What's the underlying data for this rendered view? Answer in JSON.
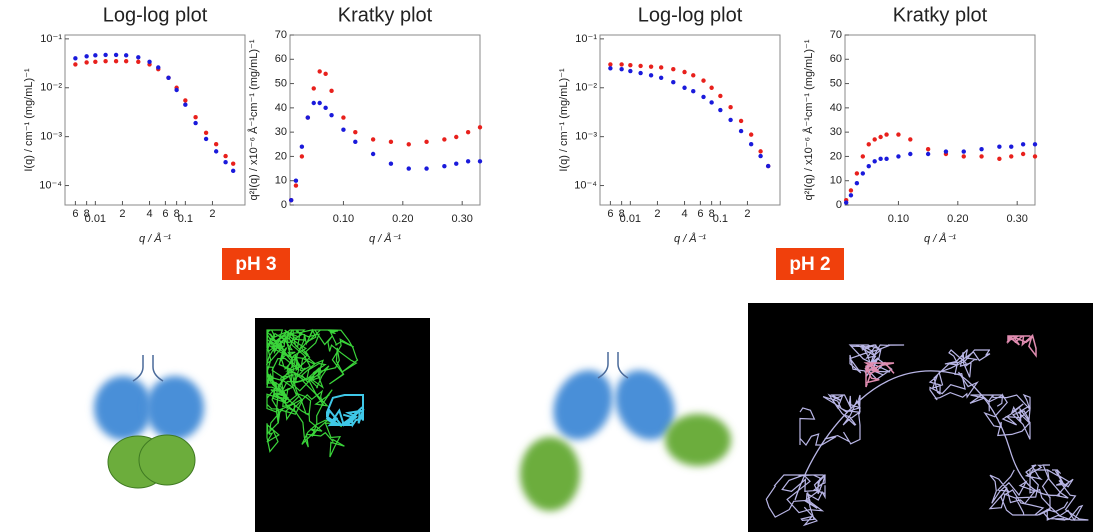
{
  "chart_data": [
    {
      "type": "scatter",
      "title": "Log-log plot",
      "xlabel": "q / Å⁻¹",
      "ylabel": "I(q) / cm⁻¹ (mg/mL)⁻¹",
      "xscale": "log",
      "yscale": "log",
      "xlim": [
        0.0046,
        0.46
      ],
      "ylim": [
        4e-05,
        0.12
      ],
      "xticks": [
        {
          "value": 0.006,
          "label": "6"
        },
        {
          "value": 0.008,
          "label": "8"
        },
        0.01,
        {
          "value": 0.02,
          "label": "2"
        },
        {
          "value": 0.04,
          "label": "4"
        },
        {
          "value": 0.06,
          "label": "6"
        },
        {
          "value": 0.08,
          "label": "8"
        },
        0.1,
        {
          "value": 0.2,
          "label": "2"
        }
      ],
      "yticks": [
        {
          "value": 0.0001,
          "label": "10⁻⁴"
        },
        {
          "value": 0.001,
          "label": "10⁻³"
        },
        {
          "value": 0.01,
          "label": "10⁻²"
        },
        {
          "value": 0.1,
          "label": "10⁻¹"
        }
      ],
      "x": [
        0.006,
        0.008,
        0.01,
        0.013,
        0.017,
        0.022,
        0.03,
        0.04,
        0.05,
        0.065,
        0.08,
        0.1,
        0.13,
        0.17,
        0.22,
        0.28,
        0.34
      ],
      "series": [
        {
          "color": "#e8201c",
          "values": [
            0.03,
            0.033,
            0.034,
            0.035,
            0.035,
            0.035,
            0.034,
            0.03,
            0.024,
            0.016,
            0.01,
            0.0055,
            0.0025,
            0.0012,
            0.0007,
            0.0004,
            0.00028
          ]
        },
        {
          "color": "#1a1adb",
          "values": [
            0.04,
            0.044,
            0.046,
            0.047,
            0.047,
            0.046,
            0.042,
            0.034,
            0.026,
            0.016,
            0.009,
            0.0045,
            0.0019,
            0.0009,
            0.0005,
            0.0003,
            0.0002
          ]
        }
      ]
    },
    {
      "type": "scatter",
      "title": "Kratky plot",
      "xlabel": "q / Å⁻¹",
      "ylabel": "q²I(q) / x10⁻⁶ Å⁻¹cm⁻¹ (mg/mL)⁻¹",
      "xlim": [
        0.01,
        0.33
      ],
      "ylim": [
        0,
        70
      ],
      "xticks": [
        {
          "value": 0.1,
          "label": "0.10"
        },
        {
          "value": 0.2,
          "label": "0.20"
        },
        {
          "value": 0.3,
          "label": "0.30"
        }
      ],
      "yticks": [
        0,
        10,
        20,
        30,
        40,
        50,
        60,
        70
      ],
      "x": [
        0.012,
        0.02,
        0.03,
        0.04,
        0.05,
        0.06,
        0.07,
        0.08,
        0.1,
        0.12,
        0.15,
        0.18,
        0.21,
        0.24,
        0.27,
        0.29,
        0.31,
        0.33
      ],
      "series": [
        {
          "color": "#e8201c",
          "values": [
            2,
            8,
            20,
            36,
            48,
            55,
            54,
            47,
            36,
            30,
            27,
            26,
            25,
            26,
            27,
            28,
            30,
            32
          ]
        },
        {
          "color": "#1a1adb",
          "values": [
            2,
            10,
            24,
            36,
            42,
            42,
            40,
            37,
            31,
            26,
            21,
            17,
            15,
            15,
            16,
            17,
            18,
            18
          ]
        }
      ]
    },
    {
      "type": "scatter",
      "title": "Log-log plot",
      "xlabel": "q / Å⁻¹",
      "ylabel": "I(q) / cm⁻¹ (mg/mL)⁻¹",
      "xscale": "log",
      "yscale": "log",
      "xlim": [
        0.0046,
        0.46
      ],
      "ylim": [
        4e-05,
        0.12
      ],
      "xticks": [
        {
          "value": 0.006,
          "label": "6"
        },
        {
          "value": 0.008,
          "label": "8"
        },
        0.01,
        {
          "value": 0.02,
          "label": "2"
        },
        {
          "value": 0.04,
          "label": "4"
        },
        {
          "value": 0.06,
          "label": "6"
        },
        {
          "value": 0.08,
          "label": "8"
        },
        0.1,
        {
          "value": 0.2,
          "label": "2"
        }
      ],
      "yticks": [
        {
          "value": 0.0001,
          "label": "10⁻⁴"
        },
        {
          "value": 0.001,
          "label": "10⁻³"
        },
        {
          "value": 0.01,
          "label": "10⁻²"
        },
        {
          "value": 0.1,
          "label": "10⁻¹"
        }
      ],
      "x": [
        0.006,
        0.008,
        0.01,
        0.013,
        0.017,
        0.022,
        0.03,
        0.04,
        0.05,
        0.065,
        0.08,
        0.1,
        0.13,
        0.17,
        0.22,
        0.28,
        0.34
      ],
      "series": [
        {
          "color": "#e8201c",
          "values": [
            0.03,
            0.03,
            0.029,
            0.028,
            0.027,
            0.026,
            0.024,
            0.021,
            0.018,
            0.014,
            0.01,
            0.0068,
            0.004,
            0.0021,
            0.0011,
            0.0005,
            0.00025
          ]
        },
        {
          "color": "#1a1adb",
          "values": [
            0.025,
            0.024,
            0.022,
            0.02,
            0.018,
            0.016,
            0.013,
            0.01,
            0.0085,
            0.0065,
            0.005,
            0.0035,
            0.0022,
            0.0013,
            0.0007,
            0.0004,
            0.00025
          ]
        }
      ]
    },
    {
      "type": "scatter",
      "title": "Kratky plot",
      "xlabel": "q / Å⁻¹",
      "ylabel": "q²I(q) / x10⁻⁶ Å⁻¹cm⁻¹ (mg/mL)⁻¹",
      "xlim": [
        0.01,
        0.33
      ],
      "ylim": [
        0,
        70
      ],
      "xticks": [
        {
          "value": 0.1,
          "label": "0.10"
        },
        {
          "value": 0.2,
          "label": "0.20"
        },
        {
          "value": 0.3,
          "label": "0.30"
        }
      ],
      "yticks": [
        0,
        10,
        20,
        30,
        40,
        50,
        60,
        70
      ],
      "x": [
        0.012,
        0.02,
        0.03,
        0.04,
        0.05,
        0.06,
        0.07,
        0.08,
        0.1,
        0.12,
        0.15,
        0.18,
        0.21,
        0.24,
        0.27,
        0.29,
        0.31,
        0.33
      ],
      "series": [
        {
          "color": "#e8201c",
          "values": [
            2,
            6,
            13,
            20,
            25,
            27,
            28,
            29,
            29,
            27,
            23,
            21,
            20,
            20,
            19,
            20,
            21,
            20
          ]
        },
        {
          "color": "#1a1adb",
          "values": [
            1,
            4,
            9,
            13,
            16,
            18,
            19,
            19,
            20,
            21,
            21,
            22,
            22,
            23,
            24,
            24,
            25,
            25
          ]
        }
      ]
    }
  ],
  "labels": [
    "pH 3",
    "pH 2"
  ]
}
